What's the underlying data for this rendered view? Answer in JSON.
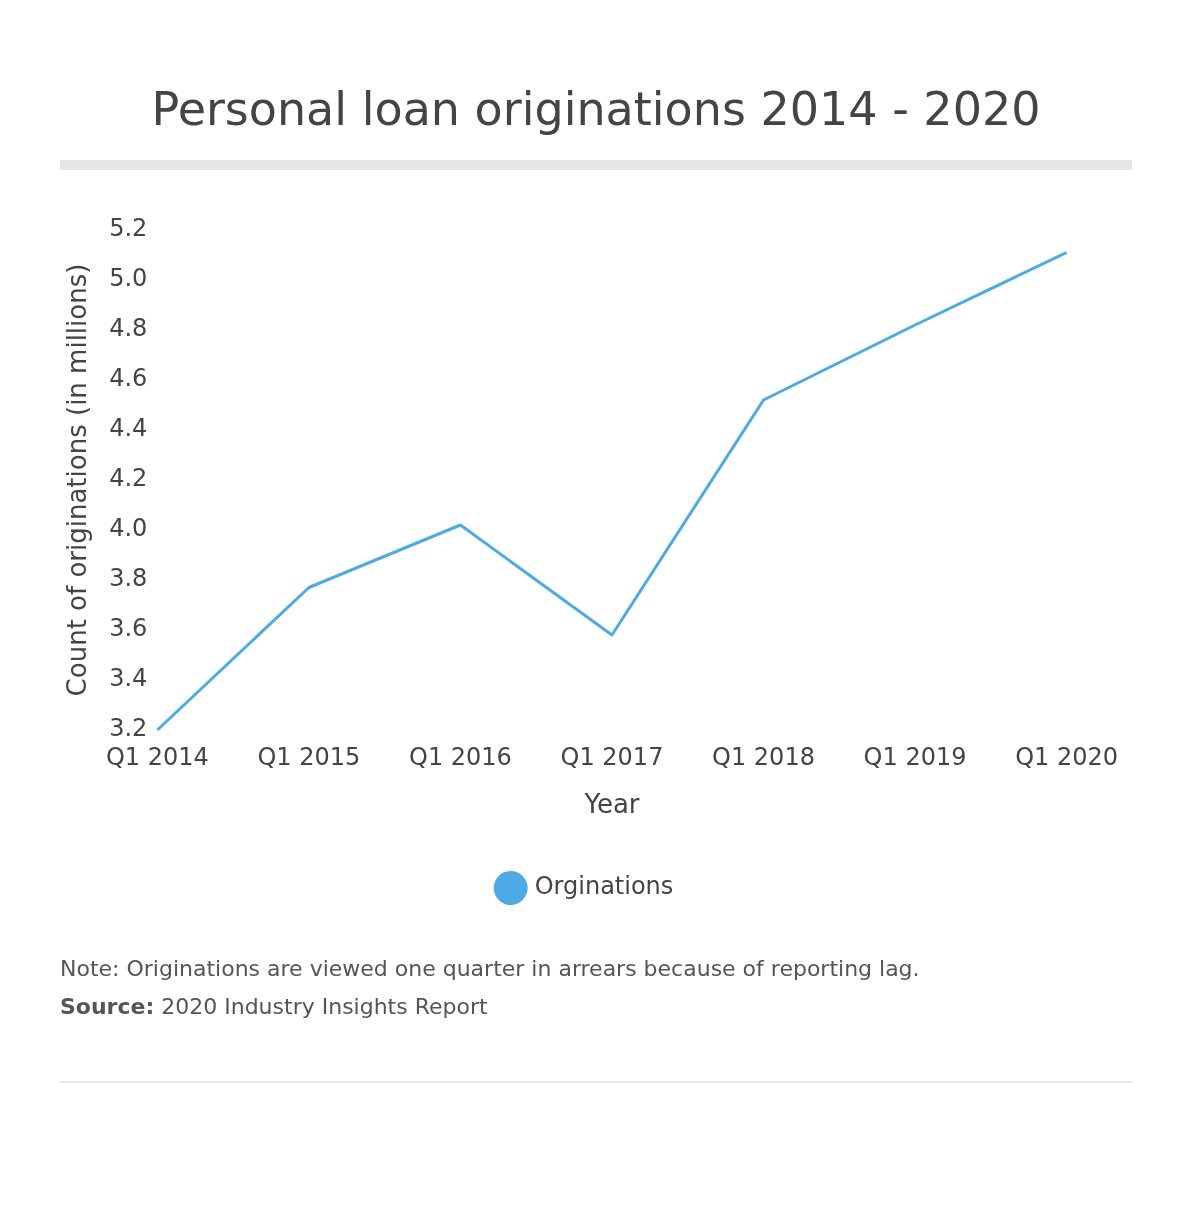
{
  "chart_data": {
    "type": "line",
    "title": "Personal loan originations 2014 - 2020",
    "xlabel": "Year",
    "ylabel": "Count of originations (in millions)",
    "categories": [
      "Q1 2014",
      "Q1 2015",
      "Q1 2016",
      "Q1 2017",
      "Q1 2018",
      "Q1 2019",
      "Q1 2020"
    ],
    "series": [
      {
        "name": "Orginations",
        "color": "#4eaae3",
        "values": [
          3.2,
          3.77,
          4.02,
          3.58,
          4.52,
          4.82,
          5.11
        ]
      }
    ],
    "ylim": [
      3.2,
      5.2
    ],
    "yticks": [
      3.2,
      3.4,
      3.6,
      3.8,
      {
        "value": 4,
        "label": "4.0"
      },
      4.2,
      4.4,
      4.6,
      4.8,
      {
        "value": 5,
        "label": "5.0"
      },
      5.2
    ],
    "grid": false,
    "legend": "bottom",
    "marker": "none",
    "line_style": "solid",
    "annotations": [
      "Note: Originations are viewed one quarter in arrears because of reporting lag.",
      "Source: 2020 Industry Insights Report"
    ]
  }
}
